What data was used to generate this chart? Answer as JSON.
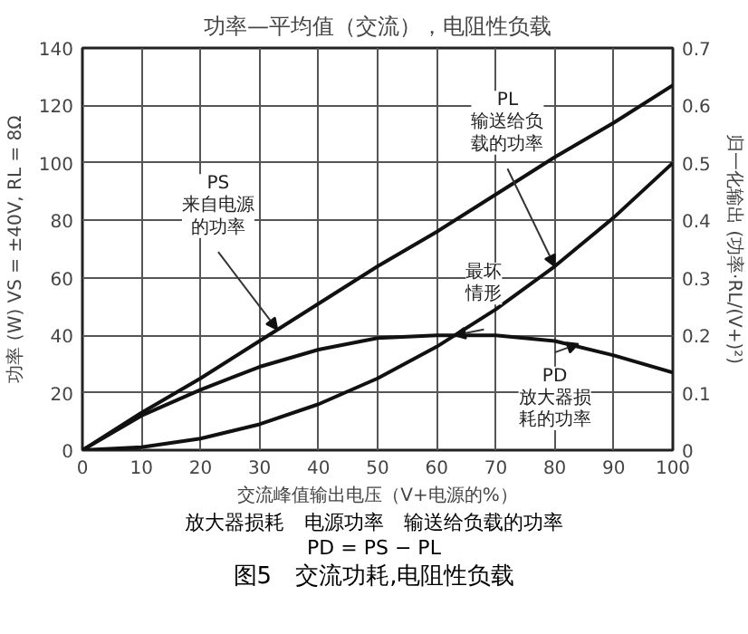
{
  "chart_data": {
    "type": "line",
    "title": "功率—平均值（交流），电阻性负载",
    "xlabel": "交流峰值输出电压（V+电源的%）",
    "ylabel": "功率 (W) VS = ±40V, RL = 8Ω",
    "y2label": "归一化输出 (功率·RL/(V+)²)",
    "x": [
      0,
      10,
      20,
      30,
      40,
      50,
      60,
      70,
      80,
      90,
      100
    ],
    "series": [
      {
        "color": "#111111",
        "values": [
          0,
          13,
          25,
          38,
          51,
          64,
          76,
          89,
          102,
          114,
          127
        ]
      },
      {
        "color": "#111111",
        "values": [
          0,
          1,
          4,
          9,
          16,
          25,
          36,
          49,
          64,
          81,
          100
        ]
      },
      {
        "color": "#111111",
        "values": [
          0,
          12,
          21,
          29,
          35,
          39,
          40,
          40,
          38,
          33,
          27
        ]
      }
    ],
    "xlim": [
      0,
      100
    ],
    "xticks": [
      0,
      10,
      20,
      30,
      40,
      50,
      60,
      70,
      80,
      90,
      100
    ],
    "ylim": [
      0,
      140
    ],
    "yticks": [
      0,
      20,
      40,
      60,
      80,
      100,
      120,
      140
    ],
    "y2lim": [
      0,
      0.7
    ],
    "y2ticks": [
      0,
      0.1,
      0.2,
      0.3,
      0.4,
      0.5,
      0.6,
      0.7
    ],
    "grid": true,
    "annotations": [
      {
        "text": "PL\n输送给负载的功率",
        "x": 80,
        "y": 64
      },
      {
        "text": "PS\n来自电源的功率",
        "x": 33,
        "y": 42
      },
      {
        "text": "最坏情形",
        "x": 63,
        "y": 40
      },
      {
        "text": "PD\n放大器损耗的功率",
        "x": 84,
        "y": 37
      },
      "放大器损耗　电源功率　输送给负载的功率",
      "PD = PS − PL",
      "图5　交流功耗,电阻性负载"
    ]
  }
}
